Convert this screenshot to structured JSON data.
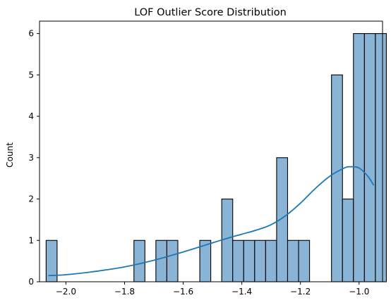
{
  "chart_data": {
    "type": "bar",
    "title": "LOF Outlier Score Distribution",
    "xlabel": "",
    "ylabel": "Count",
    "xlim": [
      -2.09,
      -0.92
    ],
    "ylim": [
      0,
      6.3
    ],
    "xticks": [
      -2.0,
      -1.8,
      -1.6,
      -1.4,
      -1.2,
      -1.0
    ],
    "xtick_labels": [
      "−2.0",
      "−1.8",
      "−1.6",
      "−1.4",
      "−1.2",
      "−1.0"
    ],
    "yticks": [
      0,
      1,
      2,
      3,
      4,
      5,
      6
    ],
    "ytick_labels": [
      "0",
      "1",
      "2",
      "3",
      "4",
      "5",
      "6"
    ],
    "grid": false,
    "bin_start": -2.0675,
    "bin_width": 0.03744,
    "bin_counts": [
      1,
      0,
      0,
      0,
      0,
      0,
      0,
      0,
      1,
      0,
      1,
      1,
      0,
      0,
      1,
      0,
      2,
      1,
      1,
      1,
      1,
      3,
      1,
      1,
      0,
      0,
      5,
      2,
      6,
      6,
      6
    ],
    "bar_color": "#8ab4d6",
    "bar_edge_color": "#000000",
    "kde": {
      "x": [
        -2.06,
        -2.0,
        -1.9,
        -1.8,
        -1.7,
        -1.6,
        -1.5,
        -1.45,
        -1.4,
        -1.35,
        -1.3,
        -1.25,
        -1.2,
        -1.15,
        -1.1,
        -1.05,
        -1.03,
        -1.0,
        -0.97,
        -0.95
      ],
      "y": [
        0.15,
        0.17,
        0.25,
        0.36,
        0.52,
        0.72,
        0.94,
        1.05,
        1.15,
        1.25,
        1.38,
        1.6,
        1.9,
        2.25,
        2.55,
        2.75,
        2.78,
        2.75,
        2.55,
        2.33
      ],
      "color": "#1f77b4"
    }
  }
}
